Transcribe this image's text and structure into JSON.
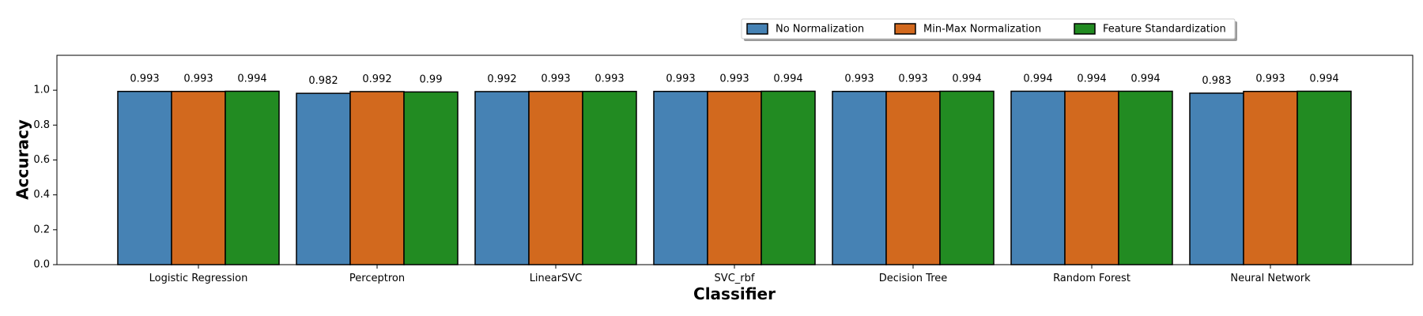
{
  "chart_data": {
    "type": "bar",
    "categories": [
      "Logistic Regression",
      "Perceptron",
      "LinearSVC",
      "SVC_rbf",
      "Decision Tree",
      "Random Forest",
      "Neural Network"
    ],
    "series": [
      {
        "name": "No Normalization",
        "color": "#4682b4",
        "values": [
          0.993,
          0.982,
          0.992,
          0.993,
          0.993,
          0.994,
          0.983
        ]
      },
      {
        "name": "Min-Max Normalization",
        "color": "#d2691e",
        "values": [
          0.993,
          0.992,
          0.993,
          0.993,
          0.993,
          0.994,
          0.993
        ]
      },
      {
        "name": "Feature Standardization",
        "color": "#228b22",
        "values": [
          0.994,
          0.99,
          0.993,
          0.994,
          0.994,
          0.994,
          0.994
        ]
      }
    ],
    "xlabel": "Classifier",
    "ylabel": "Accuracy",
    "ylim": [
      0,
      1.2
    ],
    "yticks": [
      "0.0",
      "0.2",
      "0.4",
      "0.6",
      "0.8",
      "1.0"
    ],
    "grid": false,
    "legend_position": "top-right"
  }
}
